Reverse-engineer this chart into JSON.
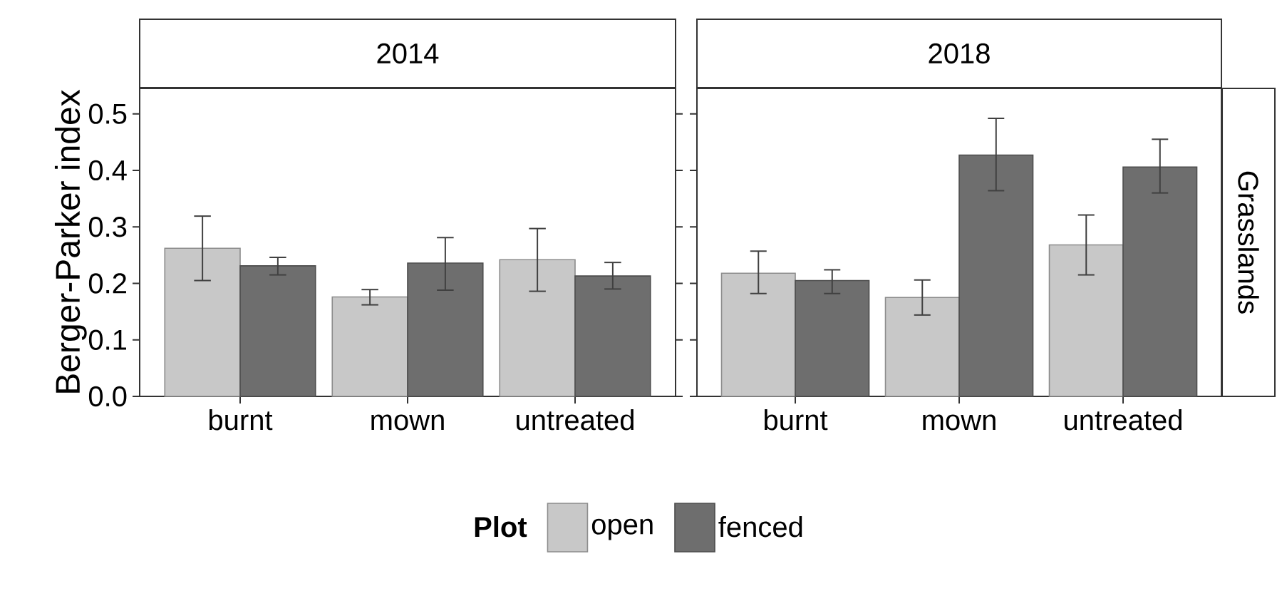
{
  "chart_data": [
    {
      "type": "bar",
      "title": "2014",
      "ylabel": "Berger-Parker index",
      "categories": [
        "burnt",
        "mown",
        "untreated"
      ],
      "ylim": [
        0,
        0.545
      ],
      "yticks": [
        {
          "value": 0,
          "label": "0.0"
        },
        0.1,
        0.2,
        0.3,
        0.4,
        0.5
      ],
      "legend": "bottom",
      "legend_title": "Plot",
      "series": [
        {
          "name": "open",
          "color": "#c8c8c8",
          "values": [
            0.262,
            0.176,
            0.242
          ],
          "errors": [
            [
              0.205,
              0.319
            ],
            [
              0.162,
              0.189
            ],
            [
              0.186,
              0.297
            ]
          ]
        },
        {
          "name": "fenced",
          "color": "#6e6e6e",
          "values": [
            0.231,
            0.236,
            0.213
          ],
          "errors": [
            [
              0.215,
              0.246
            ],
            [
              0.188,
              0.281
            ],
            [
              0.19,
              0.237
            ]
          ]
        }
      ]
    },
    {
      "type": "bar",
      "title": "2018",
      "categories": [
        "burnt",
        "mown",
        "untreated"
      ],
      "ylim": [
        0,
        0.545
      ],
      "yticks": [
        0,
        0.1,
        0.2,
        0.3,
        0.4,
        0.5
      ],
      "tick_labels": "x",
      "annotations": [
        "Grasslands"
      ],
      "series": [
        {
          "color": "#c8c8c8",
          "values": [
            0.218,
            0.175,
            0.268
          ],
          "errors": [
            [
              0.182,
              0.257
            ],
            [
              0.144,
              0.206
            ],
            [
              0.215,
              0.321
            ]
          ]
        },
        {
          "color": "#6e6e6e",
          "values": [
            0.205,
            0.427,
            0.406
          ],
          "errors": [
            [
              0.182,
              0.224
            ],
            [
              0.364,
              0.492
            ],
            [
              0.36,
              0.455
            ]
          ]
        }
      ]
    }
  ]
}
